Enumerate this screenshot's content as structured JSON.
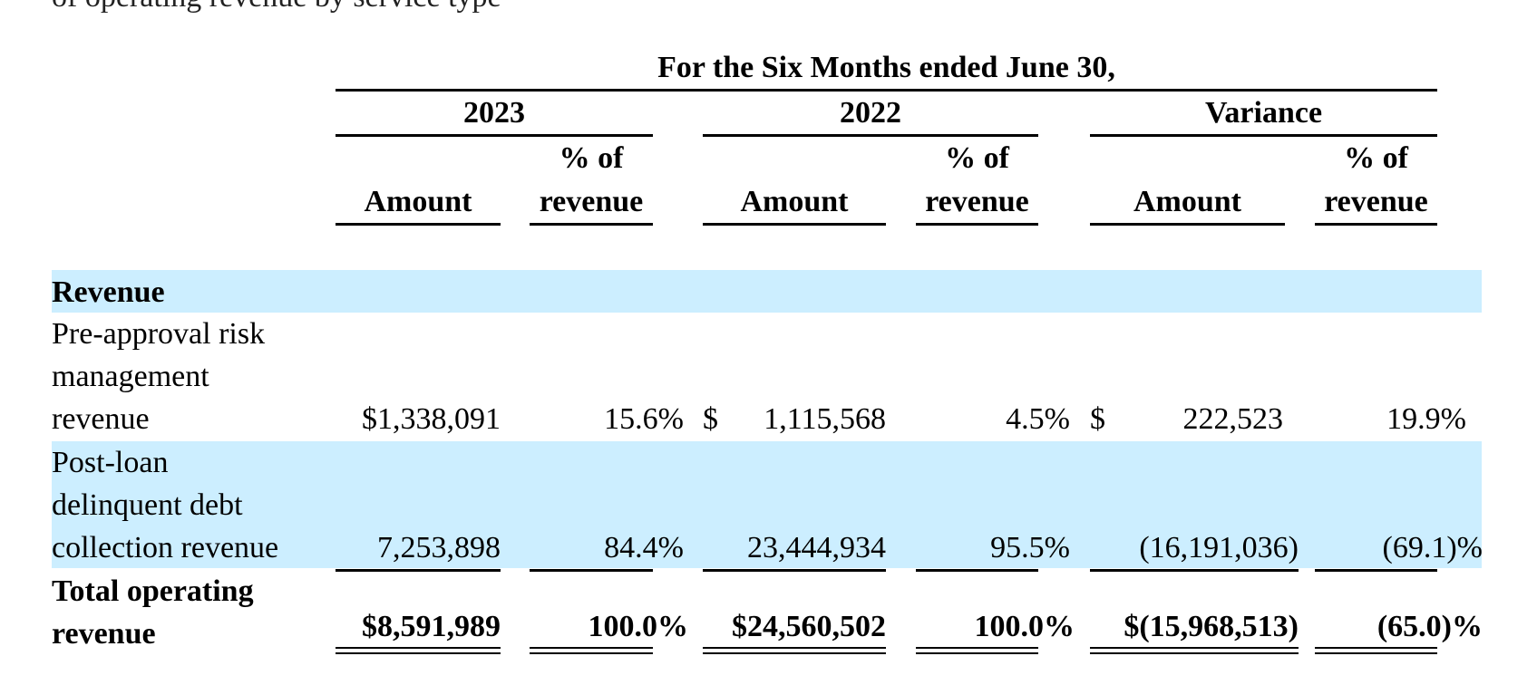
{
  "intro_text_fragment": "of operating revenue by service type",
  "header": {
    "period_title": "For the Six Months ended June 30,",
    "groups": [
      "2023",
      "2022",
      "Variance"
    ],
    "amount_label": "Amount",
    "pct_label_line1": "% of",
    "pct_label_line2": "revenue"
  },
  "section_label": "Revenue",
  "rows": [
    {
      "label_lines": [
        "Pre-approval risk",
        "management",
        "revenue"
      ],
      "y2023_amount": "$1,338,091",
      "y2023_pct": "15.6%",
      "y2022_dollar": "$",
      "y2022_amount": "1,115,568",
      "y2022_pct": "4.5%",
      "var_dollar": "$",
      "var_amount": "222,523",
      "var_pct": "19.9%"
    },
    {
      "label_lines": [
        "Post-loan",
        "delinquent debt",
        "collection revenue"
      ],
      "y2023_amount": "7,253,898",
      "y2023_pct": "84.4%",
      "y2022_amount": "23,444,934",
      "y2022_pct": "95.5%",
      "var_amount": "(16,191,036)",
      "var_pct": "(69.1)%"
    }
  ],
  "total": {
    "label_lines": [
      "Total operating",
      "revenue"
    ],
    "y2023_amount": "$8,591,989",
    "y2023_pct": "100.0%",
    "y2022_amount": "$24,560,502",
    "y2022_pct": "100.0%",
    "var_amount": "$(15,968,513)",
    "var_pct": "(65.0)%"
  },
  "colors": {
    "row_band": "#cceeff",
    "text": "#000000"
  }
}
